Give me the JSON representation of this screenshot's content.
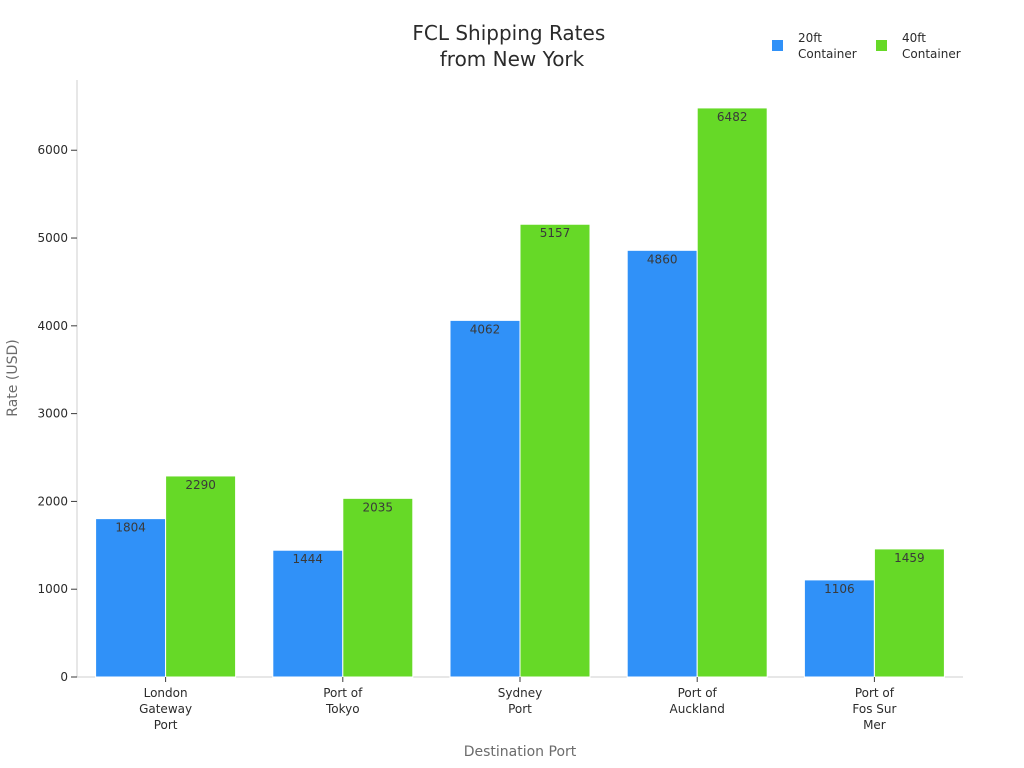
{
  "chart_data": {
    "type": "bar",
    "title": [
      "FCL Shipping Rates",
      "from New York"
    ],
    "xlabel": "Destination Port",
    "ylabel": "Rate (USD)",
    "categories": [
      [
        "London",
        "Gateway",
        "Port"
      ],
      [
        "Port of",
        "Tokyo"
      ],
      [
        "Sydney",
        "Port"
      ],
      [
        "Port of",
        "Auckland"
      ],
      [
        "Port of",
        "Fos Sur",
        "Mer"
      ]
    ],
    "series": [
      {
        "name": [
          "20ft",
          "Container"
        ],
        "color": "#3091f8",
        "values": [
          1804,
          1444,
          4062,
          4860,
          1106
        ]
      },
      {
        "name": [
          "40ft",
          "Container"
        ],
        "color": "#66d927",
        "values": [
          2290,
          2035,
          5157,
          6482,
          1459
        ]
      }
    ],
    "yticks": [
      0,
      1000,
      2000,
      3000,
      4000,
      5000,
      6000
    ],
    "ylim": [
      0,
      6800
    ],
    "grid": false,
    "legend_position": "top-right"
  }
}
